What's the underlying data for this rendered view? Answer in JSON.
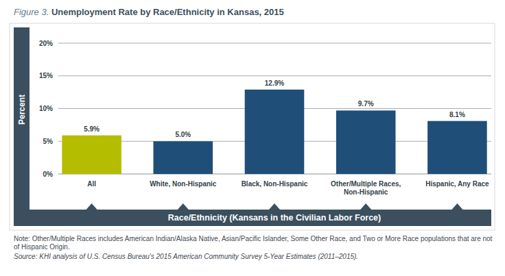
{
  "chart_data": {
    "type": "bar",
    "title": "Figure 3. Unemployment Rate by Race/Ethnicity in Kansas, 2015",
    "x_label": "Race/Ethnicity (Kansans in the Civilian Labor Force)",
    "y_label": "Percent",
    "categories": [
      "All",
      "White, Non-Hispanic",
      "Black, Non-Hispanic",
      "Other/Multiple Races, Non-Hispanic",
      "Hispanic, Any Race"
    ],
    "values": [
      5.9,
      5.0,
      12.9,
      9.7,
      8.1
    ],
    "value_labels": [
      "5.9%",
      "5.0%",
      "12.9%",
      "9.7%",
      "8.1%"
    ],
    "colors": [
      "#b5bd00",
      "#1f4e79",
      "#1f4e79",
      "#1f4e79",
      "#1f4e79"
    ],
    "ylim": [
      0,
      20
    ],
    "yticks": [
      {
        "value": 0,
        "label": "0%"
      },
      {
        "value": 5,
        "label": "5%"
      },
      {
        "value": 10,
        "label": "10%"
      },
      {
        "value": 15,
        "label": "15%"
      },
      {
        "value": 20,
        "label": "20%"
      }
    ],
    "grid": true,
    "data_labels": true,
    "note": "Note: Other/Multiple Races includes American Indian/Alaska Native, Asian/Pacific Islander, Some Other Race, and Two or More Race populations that are not of Hispanic Origin.",
    "source": "Source: KHI analysis of U.S. Census Bureau's 2015 American Community Survey 5-Year Estimates (2011–2015)."
  }
}
